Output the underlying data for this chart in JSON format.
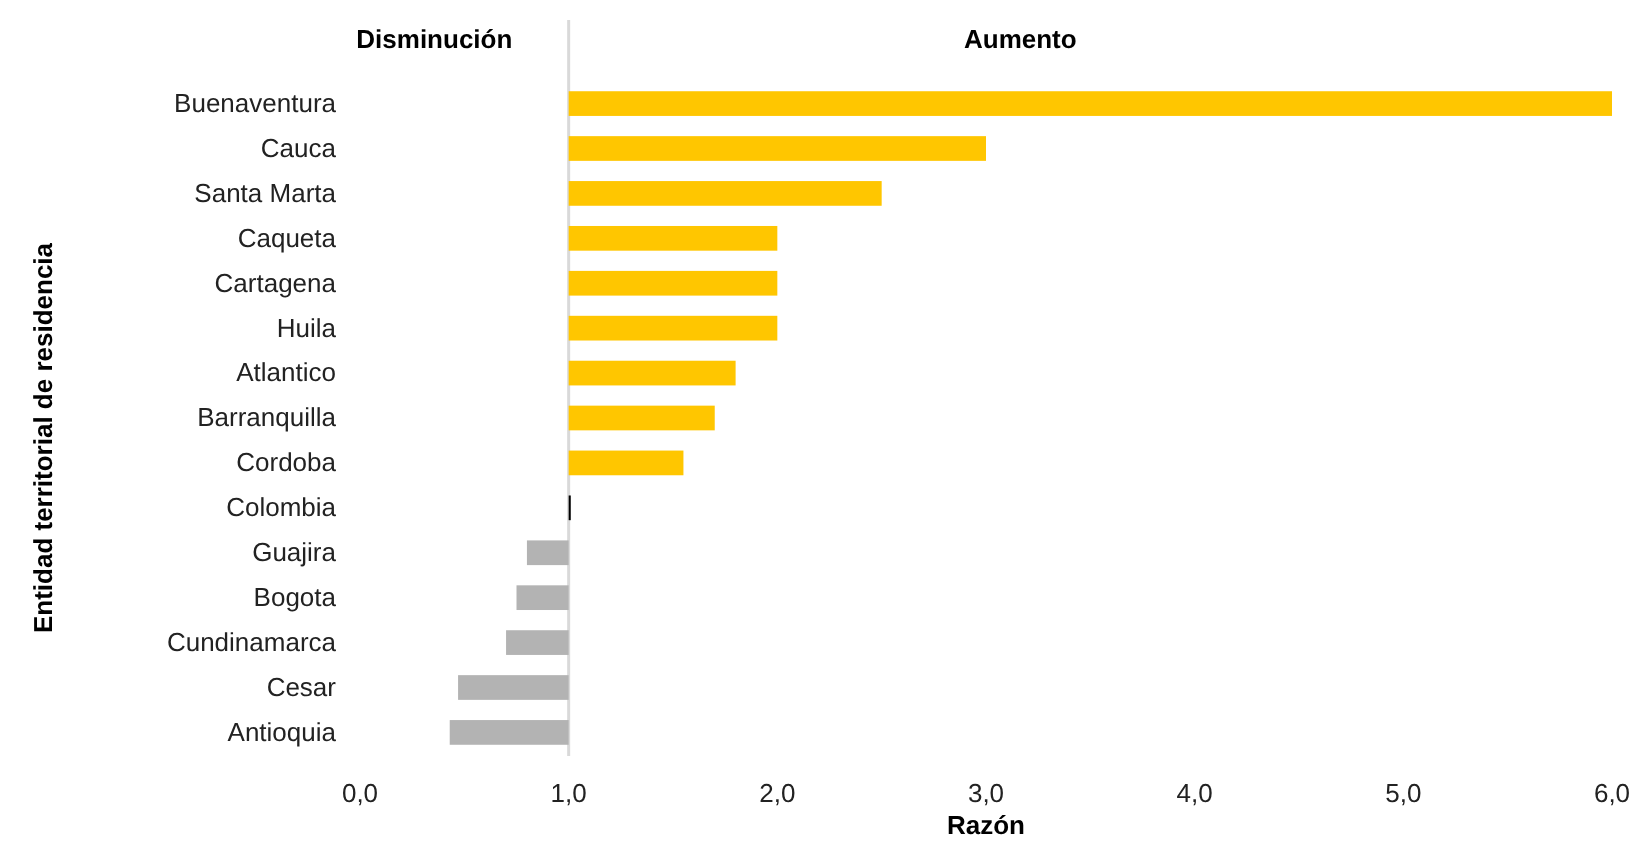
{
  "chart_data": {
    "type": "bar",
    "orientation": "horizontal",
    "xlabel": "Razón",
    "ylabel": "Entidad territorial de residencia",
    "annotations": [
      "Disminución",
      "Aumento"
    ],
    "categories": [
      "Buenaventura",
      "Cauca",
      "Santa Marta",
      "Caqueta",
      "Cartagena",
      "Huila",
      "Atlantico",
      "Barranquilla",
      "Cordoba",
      "Colombia",
      "Guajira",
      "Bogota",
      "Cundinamarca",
      "Cesar",
      "Antioquia"
    ],
    "base": [
      1,
      1,
      1,
      1,
      1,
      1,
      1,
      1,
      1,
      1,
      1,
      1,
      1,
      1,
      1
    ],
    "values": [
      5.0,
      2.0,
      1.5,
      1.0,
      1.0,
      1.0,
      0.8,
      0.7,
      0.55,
      0.01,
      -0.2,
      -0.25,
      -0.3,
      -0.53,
      -0.57
    ],
    "colors": [
      "#ffc600",
      "#ffc600",
      "#ffc600",
      "#ffc600",
      "#ffc600",
      "#ffc600",
      "#ffc600",
      "#ffc600",
      "#ffc600",
      "#000000",
      "#b3b3b3",
      "#b3b3b3",
      "#b3b3b3",
      "#b3b3b3",
      "#b3b3b3"
    ],
    "xlim": [
      0,
      6
    ],
    "xticks": [
      {
        "value": 0,
        "label": "0,0"
      },
      {
        "value": 1,
        "label": "1,0"
      },
      {
        "value": 2,
        "label": "2,0"
      },
      {
        "value": 3,
        "label": "3,0"
      },
      {
        "value": 4,
        "label": "4,0"
      },
      {
        "value": 5,
        "label": "5,0"
      },
      {
        "value": 6,
        "label": "6,0"
      }
    ],
    "ref_lines": [
      {
        "axis": "x",
        "value": 1,
        "color": "#d9d9d9"
      }
    ],
    "grid": false
  }
}
